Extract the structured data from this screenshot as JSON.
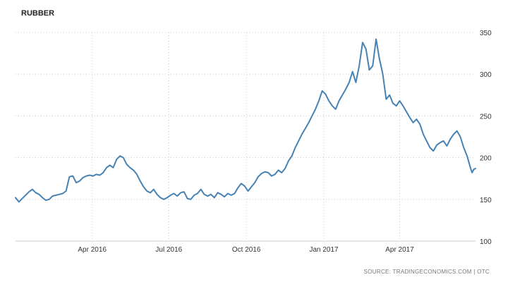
{
  "chart_data": {
    "type": "line",
    "title": "RUBBER",
    "source": "SOURCE: TRADINGECONOMICS.COM | OTC",
    "line_color": "#4682b4",
    "grid": true,
    "xlabel": "",
    "ylabel": "",
    "ylim": [
      100,
      350
    ],
    "xlim": [
      "2016-01-01",
      "2017-06-30"
    ],
    "x_ticks": [
      {
        "date": "2016-04-01",
        "label": "Apr 2016"
      },
      {
        "date": "2016-07-01",
        "label": "Jul 2016"
      },
      {
        "date": "2016-10-01",
        "label": "Oct 2016"
      },
      {
        "date": "2017-01-01",
        "label": "Jan 2017"
      },
      {
        "date": "2017-04-01",
        "label": "Apr 2017"
      }
    ],
    "y_ticks": [
      100,
      150,
      200,
      250,
      300,
      350
    ],
    "series": [
      {
        "name": "",
        "points": [
          [
            "2016-01-01",
            152
          ],
          [
            "2016-01-05",
            147
          ],
          [
            "2016-01-09",
            151
          ],
          [
            "2016-01-13",
            155
          ],
          [
            "2016-01-17",
            159
          ],
          [
            "2016-01-21",
            162
          ],
          [
            "2016-01-25",
            158
          ],
          [
            "2016-01-29",
            156
          ],
          [
            "2016-02-02",
            152
          ],
          [
            "2016-02-06",
            149
          ],
          [
            "2016-02-10",
            150
          ],
          [
            "2016-02-14",
            154
          ],
          [
            "2016-02-18",
            155
          ],
          [
            "2016-02-22",
            156
          ],
          [
            "2016-02-26",
            157
          ],
          [
            "2016-03-01",
            160
          ],
          [
            "2016-03-05",
            177
          ],
          [
            "2016-03-09",
            178
          ],
          [
            "2016-03-13",
            170
          ],
          [
            "2016-03-17",
            172
          ],
          [
            "2016-03-21",
            176
          ],
          [
            "2016-03-25",
            178
          ],
          [
            "2016-03-29",
            179
          ],
          [
            "2016-04-02",
            178
          ],
          [
            "2016-04-06",
            180
          ],
          [
            "2016-04-10",
            179
          ],
          [
            "2016-04-14",
            182
          ],
          [
            "2016-04-18",
            188
          ],
          [
            "2016-04-22",
            191
          ],
          [
            "2016-04-26",
            188
          ],
          [
            "2016-04-30",
            198
          ],
          [
            "2016-05-04",
            202
          ],
          [
            "2016-05-08",
            200
          ],
          [
            "2016-05-12",
            192
          ],
          [
            "2016-05-16",
            188
          ],
          [
            "2016-05-20",
            185
          ],
          [
            "2016-05-24",
            180
          ],
          [
            "2016-05-28",
            172
          ],
          [
            "2016-06-01",
            165
          ],
          [
            "2016-06-05",
            160
          ],
          [
            "2016-06-09",
            158
          ],
          [
            "2016-06-13",
            162
          ],
          [
            "2016-06-17",
            156
          ],
          [
            "2016-06-21",
            152
          ],
          [
            "2016-06-25",
            150
          ],
          [
            "2016-06-29",
            152
          ],
          [
            "2016-07-03",
            155
          ],
          [
            "2016-07-07",
            157
          ],
          [
            "2016-07-11",
            154
          ],
          [
            "2016-07-15",
            158
          ],
          [
            "2016-07-19",
            159
          ],
          [
            "2016-07-23",
            151
          ],
          [
            "2016-07-27",
            150
          ],
          [
            "2016-07-31",
            155
          ],
          [
            "2016-08-04",
            157
          ],
          [
            "2016-08-08",
            162
          ],
          [
            "2016-08-12",
            156
          ],
          [
            "2016-08-16",
            154
          ],
          [
            "2016-08-20",
            156
          ],
          [
            "2016-08-24",
            152
          ],
          [
            "2016-08-28",
            158
          ],
          [
            "2016-09-01",
            156
          ],
          [
            "2016-09-05",
            153
          ],
          [
            "2016-09-09",
            157
          ],
          [
            "2016-09-13",
            155
          ],
          [
            "2016-09-17",
            157
          ],
          [
            "2016-09-21",
            164
          ],
          [
            "2016-09-25",
            169
          ],
          [
            "2016-09-29",
            166
          ],
          [
            "2016-10-03",
            160
          ],
          [
            "2016-10-07",
            165
          ],
          [
            "2016-10-11",
            170
          ],
          [
            "2016-10-15",
            177
          ],
          [
            "2016-10-19",
            181
          ],
          [
            "2016-10-23",
            183
          ],
          [
            "2016-10-27",
            182
          ],
          [
            "2016-10-31",
            178
          ],
          [
            "2016-11-04",
            180
          ],
          [
            "2016-11-08",
            185
          ],
          [
            "2016-11-12",
            182
          ],
          [
            "2016-11-16",
            187
          ],
          [
            "2016-11-20",
            196
          ],
          [
            "2016-11-24",
            202
          ],
          [
            "2016-11-28",
            212
          ],
          [
            "2016-12-02",
            220
          ],
          [
            "2016-12-06",
            228
          ],
          [
            "2016-12-10",
            235
          ],
          [
            "2016-12-14",
            242
          ],
          [
            "2016-12-18",
            250
          ],
          [
            "2016-12-22",
            258
          ],
          [
            "2016-12-26",
            268
          ],
          [
            "2016-12-30",
            280
          ],
          [
            "2017-01-03",
            276
          ],
          [
            "2017-01-07",
            268
          ],
          [
            "2017-01-11",
            262
          ],
          [
            "2017-01-15",
            258
          ],
          [
            "2017-01-19",
            268
          ],
          [
            "2017-01-23",
            275
          ],
          [
            "2017-01-27",
            282
          ],
          [
            "2017-01-31",
            290
          ],
          [
            "2017-02-04",
            303
          ],
          [
            "2017-02-08",
            290
          ],
          [
            "2017-02-12",
            310
          ],
          [
            "2017-02-16",
            338
          ],
          [
            "2017-02-20",
            330
          ],
          [
            "2017-02-24",
            305
          ],
          [
            "2017-02-28",
            310
          ],
          [
            "2017-03-04",
            342
          ],
          [
            "2017-03-08",
            318
          ],
          [
            "2017-03-12",
            300
          ],
          [
            "2017-03-16",
            270
          ],
          [
            "2017-03-20",
            275
          ],
          [
            "2017-03-24",
            265
          ],
          [
            "2017-03-28",
            262
          ],
          [
            "2017-04-01",
            268
          ],
          [
            "2017-04-05",
            262
          ],
          [
            "2017-04-09",
            255
          ],
          [
            "2017-04-13",
            248
          ],
          [
            "2017-04-17",
            242
          ],
          [
            "2017-04-21",
            246
          ],
          [
            "2017-04-25",
            240
          ],
          [
            "2017-04-29",
            228
          ],
          [
            "2017-05-03",
            220
          ],
          [
            "2017-05-07",
            212
          ],
          [
            "2017-05-11",
            208
          ],
          [
            "2017-05-15",
            215
          ],
          [
            "2017-05-19",
            218
          ],
          [
            "2017-05-23",
            220
          ],
          [
            "2017-05-27",
            214
          ],
          [
            "2017-05-31",
            222
          ],
          [
            "2017-06-04",
            228
          ],
          [
            "2017-06-08",
            232
          ],
          [
            "2017-06-12",
            225
          ],
          [
            "2017-06-16",
            212
          ],
          [
            "2017-06-20",
            202
          ],
          [
            "2017-06-24",
            188
          ],
          [
            "2017-06-26",
            182
          ],
          [
            "2017-06-28",
            186
          ],
          [
            "2017-06-30",
            187
          ]
        ]
      }
    ]
  }
}
